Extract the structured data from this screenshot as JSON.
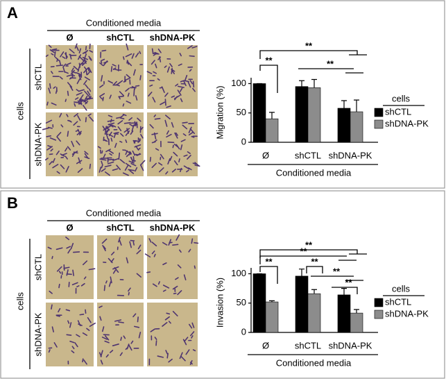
{
  "panels": [
    {
      "label": "A",
      "images": {
        "header": "Conditioned media",
        "columns": [
          "Ø",
          "shCTL",
          "shDNA-PK"
        ],
        "group": "cells",
        "rows": [
          "shCTL",
          "shDNA-PK"
        ]
      }
    },
    {
      "label": "B",
      "images": {
        "header": "Conditioned media",
        "columns": [
          "Ø",
          "shCTL",
          "shDNA-PK"
        ],
        "group": "cells",
        "rows": [
          "shCTL",
          "shDNA-PK"
        ]
      }
    }
  ],
  "chart_data": [
    {
      "type": "bar",
      "y_label": "Migration (%)",
      "x_label": "Conditioned media",
      "categories": [
        "Ø",
        "shCTL",
        "shDNA-PK"
      ],
      "series": [
        {
          "name": "shCTL",
          "color": "#000000",
          "values": [
            100,
            95,
            58
          ],
          "errors": [
            0,
            10,
            13
          ]
        },
        {
          "name": "shDNA-PK",
          "color": "#8c8c8c",
          "values": [
            40,
            93,
            52
          ],
          "errors": [
            11,
            14,
            20
          ]
        }
      ],
      "ylim": [
        0,
        110
      ],
      "yticks": [
        0,
        50,
        100
      ],
      "legend_title": "cells",
      "annotations": [
        "**",
        "**",
        "**"
      ]
    },
    {
      "type": "bar",
      "y_label": "Invasion (%)",
      "x_label": "Conditioned media",
      "categories": [
        "Ø",
        "shCTL",
        "shDNA-PK"
      ],
      "series": [
        {
          "name": "shCTL",
          "color": "#000000",
          "values": [
            100,
            96,
            64
          ],
          "errors": [
            0,
            12,
            11
          ]
        },
        {
          "name": "shDNA-PK",
          "color": "#8c8c8c",
          "values": [
            52,
            66,
            33
          ],
          "errors": [
            2,
            7,
            6
          ]
        }
      ],
      "ylim": [
        0,
        110
      ],
      "yticks": [
        0,
        50,
        100
      ],
      "legend_title": "cells",
      "annotations": [
        "**",
        "**",
        "**",
        "**",
        "**",
        "**"
      ]
    }
  ]
}
